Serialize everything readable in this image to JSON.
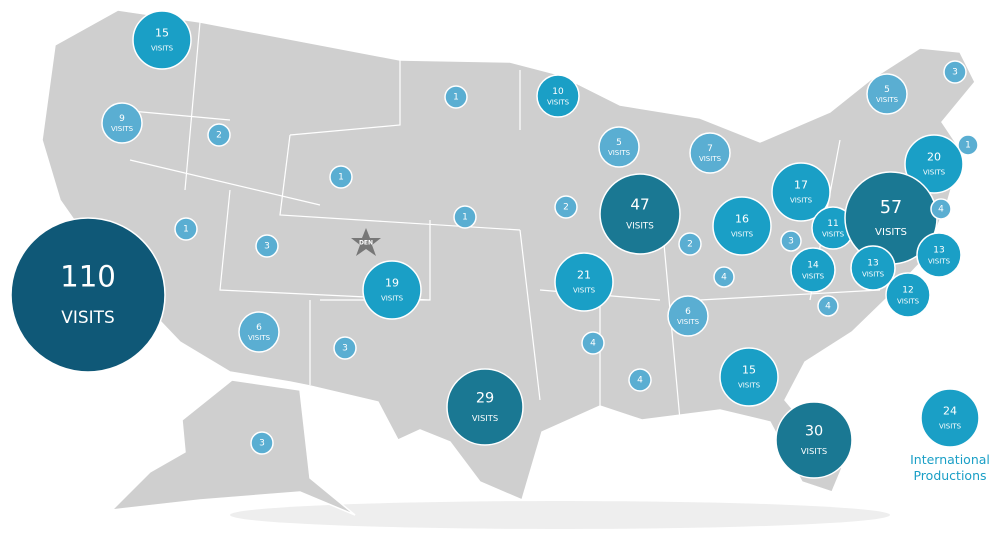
{
  "bubbles": [
    {
      "count": 15,
      "label": "VISITS"
    },
    {
      "count": 9,
      "label": "VISITS"
    },
    {
      "count": 2
    },
    {
      "count": 1
    },
    {
      "count": 10,
      "label": "VISITS"
    },
    {
      "count": 5,
      "label": "VISITS"
    },
    {
      "count": 7,
      "label": "VISITS"
    },
    {
      "count": 5,
      "label": "VISITS"
    },
    {
      "count": 3
    },
    {
      "count": 1
    },
    {
      "count": 20,
      "label": "VISITS"
    },
    {
      "count": 1
    },
    {
      "count": 1
    },
    {
      "count": 3
    },
    {
      "count": 1
    },
    {
      "count": 2
    },
    {
      "count": 47,
      "label": "VISITS"
    },
    {
      "count": 2
    },
    {
      "count": 16,
      "label": "VISITS"
    },
    {
      "count": 17,
      "label": "VISITS"
    },
    {
      "count": 11,
      "label": "VISITS"
    },
    {
      "count": 3
    },
    {
      "count": 57,
      "label": "VISITS"
    },
    {
      "count": 4
    },
    {
      "count": 13,
      "label": "VISITS"
    },
    {
      "count": 14,
      "label": "VISITS"
    },
    {
      "count": 13,
      "label": "VISITS"
    },
    {
      "count": 12,
      "label": "VISITS"
    },
    {
      "count": 4
    },
    {
      "count": 4
    },
    {
      "count": 6,
      "label": "VISITS"
    },
    {
      "count": 110,
      "label": "VISITS"
    },
    {
      "count": 19,
      "label": "VISITS"
    },
    {
      "count": 21,
      "label": "VISITS"
    },
    {
      "count": 6,
      "label": "VISITS"
    },
    {
      "count": 3
    },
    {
      "count": 4
    },
    {
      "count": 4
    },
    {
      "count": 15,
      "label": "VISITS"
    },
    {
      "count": 29,
      "label": "VISITS"
    },
    {
      "count": 30,
      "label": "VISITS"
    },
    {
      "count": 3
    },
    {
      "count": 24,
      "label": "VISITS"
    }
  ],
  "den_label": "DEN",
  "international_label": "International Productions"
}
